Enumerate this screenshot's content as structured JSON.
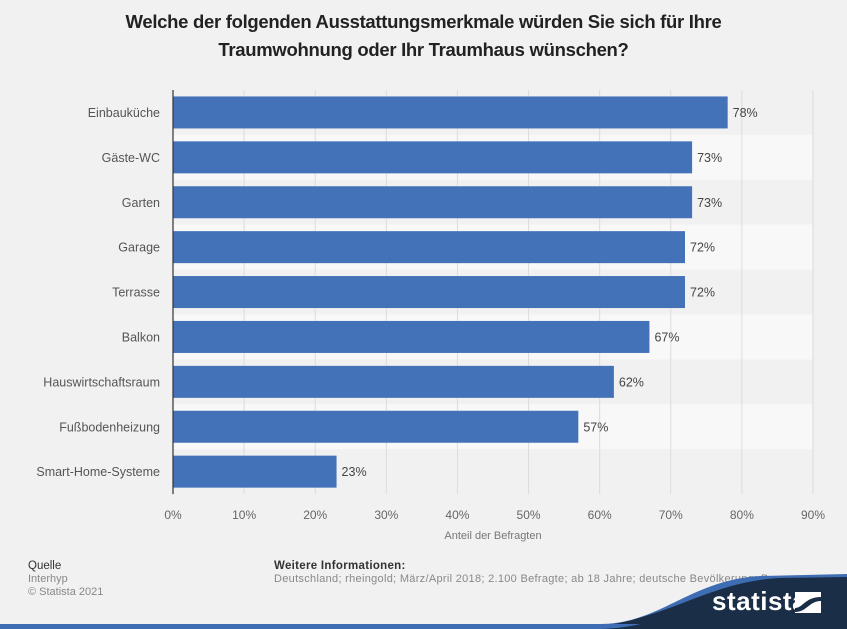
{
  "title": {
    "line1": "Welche der folgenden Ausstattungsmerkmale würden Sie sich für Ihre",
    "line2": "Traumwohnung oder Ihr Traumhaus wünschen?"
  },
  "colors": {
    "bar": "#4472b8",
    "background": "#f1f1f1",
    "band_alt": "#f8f8f8",
    "grid": "#dcdcdc",
    "footer_dark": "#1a2e48",
    "footer_wave": "#3f6db3"
  },
  "chart_data": {
    "type": "bar",
    "orientation": "horizontal",
    "title": "Welche der folgenden Ausstattungsmerkmale würden Sie sich für Ihre Traumwohnung oder Ihr Traumhaus wünschen?",
    "categories": [
      "Einbauküche",
      "Gäste-WC",
      "Garten",
      "Garage",
      "Terrasse",
      "Balkon",
      "Hauswirtschaftsraum",
      "Fußbodenheizung",
      "Smart-Home-Systeme"
    ],
    "values": [
      78,
      73,
      73,
      72,
      72,
      67,
      62,
      57,
      23
    ],
    "value_labels": [
      "78%",
      "73%",
      "73%",
      "72%",
      "72%",
      "67%",
      "62%",
      "57%",
      "23%"
    ],
    "xlabel": "Anteil der Befragten",
    "ylabel": "",
    "xlim": [
      0,
      90
    ],
    "ticks": [
      0,
      10,
      20,
      30,
      40,
      50,
      60,
      70,
      80,
      90
    ],
    "tick_labels": [
      "0%",
      "10%",
      "20%",
      "30%",
      "40%",
      "50%",
      "60%",
      "70%",
      "80%",
      "90%"
    ],
    "grid": true,
    "legend": "none"
  },
  "footer": {
    "source_heading": "Quelle",
    "source": "Interhyp",
    "copyright": "© Statista 2021",
    "info_heading": "Weitere Informationen:",
    "info_text": "Deutschland; rheingold; März/April 2018; 2.100 Befragte; ab 18 Jahre; deutsche Bevölkerung; B..."
  },
  "brand": {
    "logo_text": "statista"
  }
}
